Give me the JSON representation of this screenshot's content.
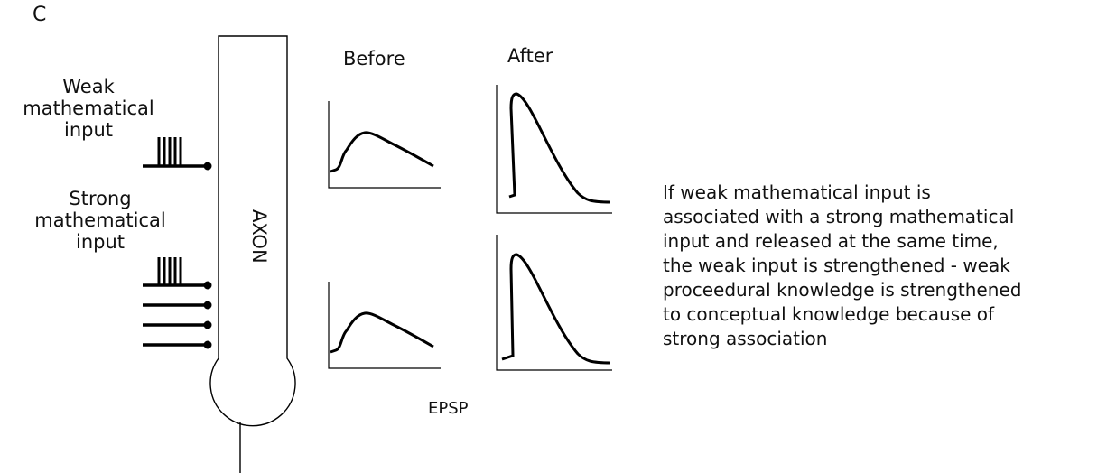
{
  "panel_label": "C",
  "weak_input_label": [
    "Weak",
    "mathematical",
    "input"
  ],
  "strong_input_label": [
    "Strong",
    "mathematical",
    "input"
  ],
  "axon_label": "AXON",
  "before_label": "Before",
  "after_label": "After",
  "epsp_label": "EPSP",
  "caption_lines": [
    "If weak mathematical input is",
    "associated with a strong mathematical",
    "input and released at the same time,",
    "the weak input is strengthened - weak",
    "proceedural knowledge is strengthened",
    "to conceptual knowledge because of",
    "strong association"
  ]
}
